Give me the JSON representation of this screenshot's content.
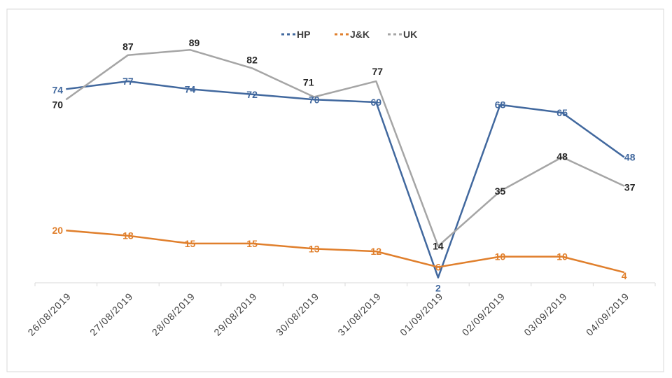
{
  "chart_data": {
    "type": "line",
    "title": "",
    "xlabel": "",
    "ylabel": "",
    "ylim": [
      0,
      92
    ],
    "grid": false,
    "legend": "top-center",
    "categories": [
      "26/08/2019",
      "27/08/2019",
      "28/08/2019",
      "29/08/2019",
      "30/08/2019",
      "31/08/2019",
      "01/09/2019",
      "02/09/2019",
      "03/09/2019",
      "04/09/2019"
    ],
    "series": [
      {
        "name": "HP",
        "color": "#41689e",
        "values": [
          74,
          77,
          74,
          72,
          70,
          69,
          2,
          68,
          65,
          48
        ]
      },
      {
        "name": "J&K",
        "color": "#e07f2c",
        "values": [
          20,
          18,
          15,
          15,
          13,
          12,
          6,
          10,
          10,
          4
        ]
      },
      {
        "name": "UK",
        "color": "#a5a5a5",
        "values": [
          70,
          87,
          89,
          82,
          71,
          77,
          14,
          35,
          48,
          37
        ]
      }
    ]
  }
}
